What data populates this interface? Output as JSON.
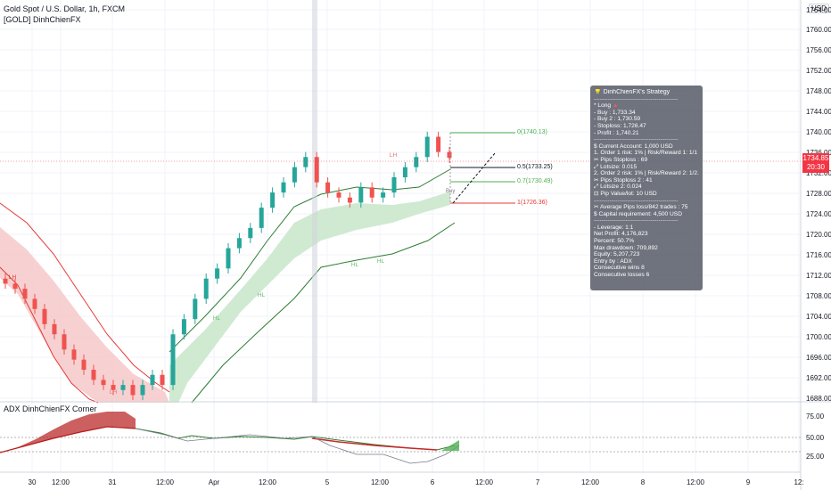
{
  "header": {
    "symbol_title": "Gold Spot / U.S. Dollar, 1h, FXCM",
    "indicator_name": "[GOLD] DinhChienFX"
  },
  "lower_pane": {
    "title": "ADX DinhChienFX Corner",
    "y_ticks": [
      "75.00",
      "50.00",
      "25.00"
    ]
  },
  "axis": {
    "currency": "USD",
    "y_ticks": [
      "1764.00",
      "1760.00",
      "1756.00",
      "1752.00",
      "1748.00",
      "1744.00",
      "1740.00",
      "1736.00",
      "1732.00",
      "1728.00",
      "1724.00",
      "1720.00",
      "1716.00",
      "1712.00",
      "1708.00",
      "1704.00",
      "1700.00",
      "1696.00",
      "1692.00",
      "1688.00"
    ],
    "x_ticks": [
      "30",
      "12:00",
      "31",
      "12:00",
      "Apr",
      "12:00",
      "5",
      "12:00",
      "6",
      "12:00",
      "7",
      "12:00",
      "8",
      "12:00",
      "9",
      "12:"
    ]
  },
  "price_tag": {
    "price": "1734.85",
    "time": "20:30",
    "color": "#f23645"
  },
  "levels": {
    "tp": "0(1740.13)",
    "mid": "0.5(1733.25)",
    "fib07": "0.7(1730.49)",
    "sl": "1(1726.36)",
    "buy_label": "Buy"
  },
  "markers": {
    "lh1": "LH",
    "lh2": "LH",
    "lh3": "LH",
    "hl1": "HL",
    "hl2": "HL",
    "hl3": "HL",
    "hl4": "HL"
  },
  "strategy_tooltip": {
    "title": "DinhChienFX's Strategy",
    "separator": "-------------------------------------------",
    "lines_a": [
      "* Long",
      " - Buy   : 1,733.34",
      " - Buy 2  : 1,730.59",
      " - Stoploss: 1,726.47",
      " - Profit  : 1,740.21"
    ],
    "lines_b": [
      "$ Current Account: 1,000 USD",
      "1. Order 1 risk: 1% | Risk/Reward 1: 1/1",
      "   ✂ Pips Stoploss : 69",
      "   ⤢ Lotsize: 0.015",
      "2. Order 2 risk: 1% | Risk/Reward 2: 1/2.33",
      "   ✂ Pips Stoploss 2 : 41",
      "   ⤢ Lotsize 2: 0.024",
      "⊡ Pip Value/lot: 10 USD"
    ],
    "lines_c": [
      "✂ Average Pips loss/842 trades : 75",
      "$ Capital requirement: 4,500 USD"
    ],
    "lines_d": [
      "- Leverage: 1:1",
      "Net Profit: 4,176,823",
      "Percent: 50.7%",
      "Max drawdown: 709,892",
      "Equity: 5,207,723",
      " Entry by : ADX",
      "Consecutive wins 8",
      "Consecutive losses 6"
    ]
  },
  "colors": {
    "bull": "#26a69a",
    "bear": "#ef5350",
    "green_band": "#c8e6c9",
    "red_band": "#f5c6c6",
    "adx_red": "#b71c1c",
    "adx_green": "#2e7d32"
  },
  "chart_data": {
    "type": "candlestick",
    "ylim": [
      1686.5,
      1766.0
    ],
    "candles_close": [
      1710,
      1709,
      1707,
      1705,
      1702,
      1700,
      1697,
      1695,
      1693,
      1691,
      1690,
      1689,
      1690,
      1688,
      1690,
      1692,
      1690,
      1700,
      1703,
      1707,
      1711,
      1713,
      1717,
      1719,
      1721,
      1725,
      1728,
      1730,
      1733,
      1735,
      1730,
      1728,
      1727,
      1726,
      1729,
      1727,
      1728,
      1731,
      1733,
      1735,
      1739,
      1736,
      1734.85
    ],
    "level_prices": [
      1740.13,
      1733.25,
      1730.49,
      1726.36
    ]
  }
}
